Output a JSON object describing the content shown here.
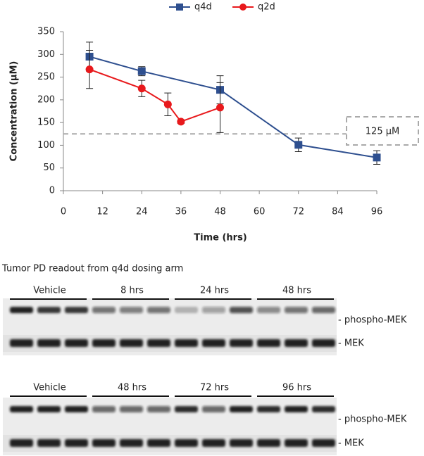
{
  "chart_data": {
    "type": "line",
    "y_label": "Concentration (µM)",
    "x_label": "Time (hrs)",
    "xlim": [
      0,
      96
    ],
    "xticks": [
      0,
      12,
      24,
      36,
      48,
      60,
      72,
      84,
      96
    ],
    "ylim": [
      0,
      350
    ],
    "yticks": [
      0,
      50,
      100,
      150,
      200,
      250,
      300,
      350
    ],
    "legend": "top",
    "reference_line": {
      "value": 125,
      "label": "125 µM"
    },
    "series": [
      {
        "name": "q4d",
        "color": "#2e4f8f",
        "marker": "square",
        "x": [
          8,
          24,
          48,
          72,
          96
        ],
        "values": [
          295,
          263,
          222,
          101,
          73
        ],
        "errors": [
          32,
          10,
          31,
          15,
          15
        ]
      },
      {
        "name": "q2d",
        "color": "#e8191c",
        "marker": "circle",
        "x": [
          8,
          24,
          32,
          36,
          48
        ],
        "values": [
          267,
          225,
          190,
          152,
          183
        ],
        "errors": [
          42,
          18,
          25,
          4,
          55
        ]
      }
    ]
  },
  "blots": {
    "caption": "Tumor PD readout from q4d dosing arm",
    "panels": [
      {
        "groups": [
          "Vehicle",
          "8 hrs",
          "24 hrs",
          "48 hrs"
        ],
        "rows": [
          "- phospho-MEK",
          "- MEK"
        ]
      },
      {
        "groups": [
          "Vehicle",
          "48 hrs",
          "72 hrs",
          "96 hrs"
        ],
        "rows": [
          "- phospho-MEK",
          "- MEK"
        ]
      }
    ]
  }
}
